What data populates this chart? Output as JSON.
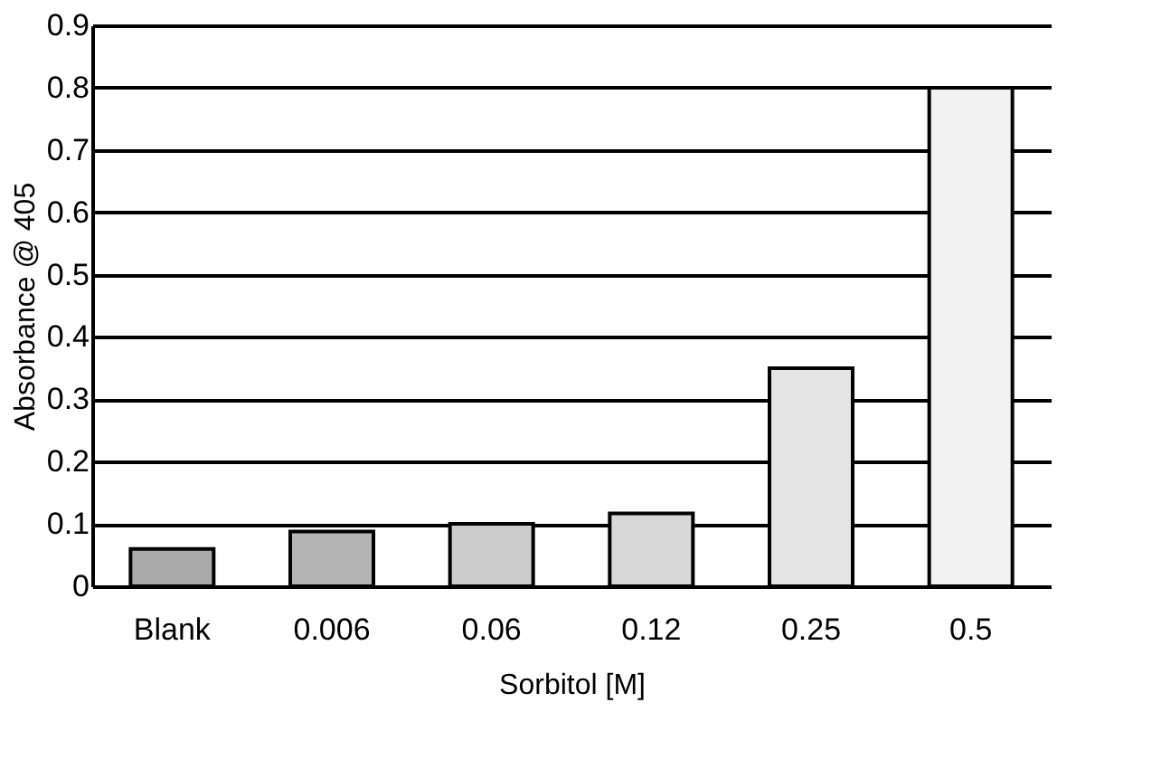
{
  "chart_data": {
    "type": "bar",
    "xlabel": "Sorbitol [M]",
    "ylabel": "Absorbance @ 405",
    "categories": [
      "Blank",
      "0.006",
      "0.06",
      "0.12",
      "0.25",
      "0.5"
    ],
    "values": [
      0.06,
      0.088,
      0.1,
      0.117,
      0.35,
      0.8
    ],
    "colors": [
      "#aaaaaa",
      "#b4b4b4",
      "#cccccc",
      "#d8d8d8",
      "#e4e4e4",
      "#f2f2f2"
    ],
    "ylim": [
      0,
      0.9
    ],
    "yticks": [
      0,
      0.1,
      0.2,
      0.3,
      0.4,
      0.5,
      0.6,
      0.7,
      0.8,
      0.9
    ],
    "grid": "y"
  }
}
